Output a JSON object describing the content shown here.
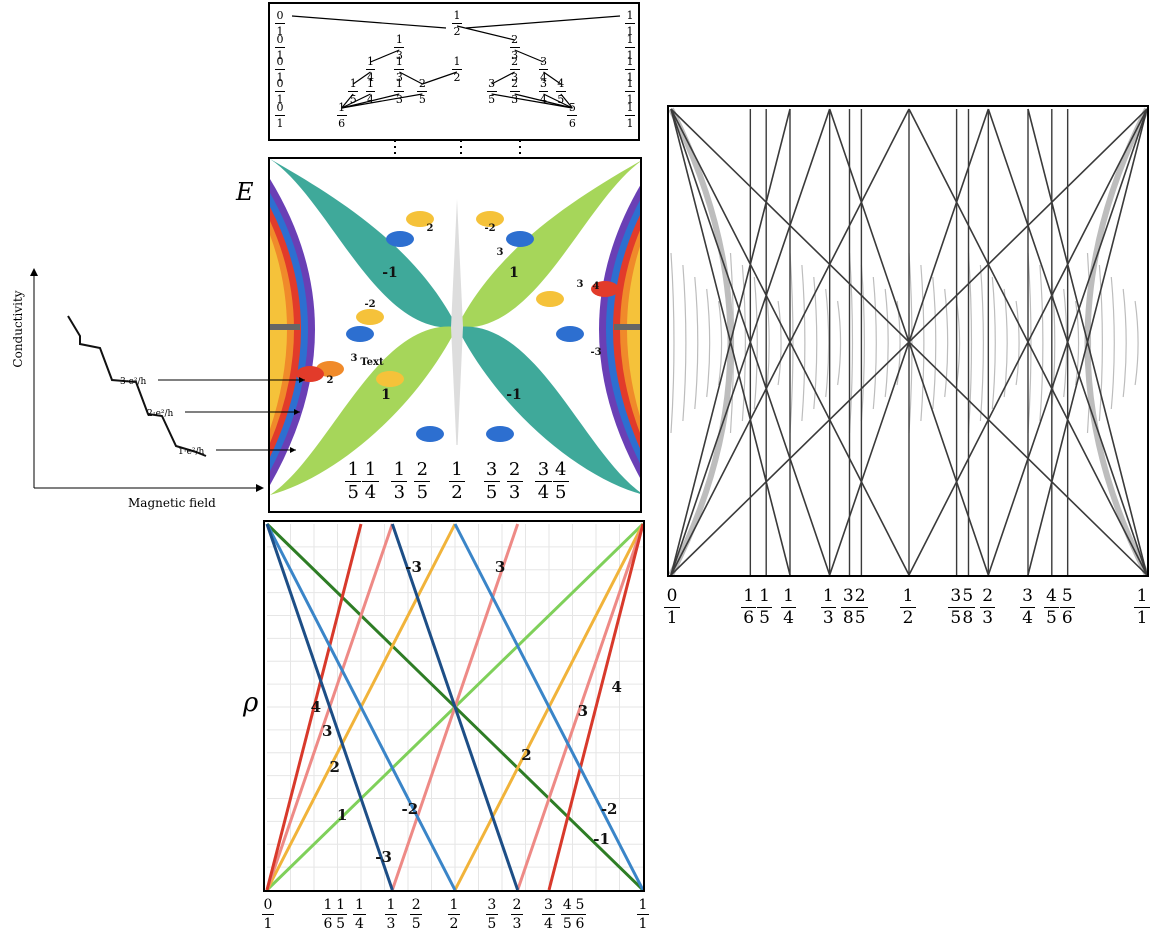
{
  "tree": {
    "rows": [
      [
        "0/1",
        "1/2",
        "1/1"
      ],
      [
        "0/1",
        "1/3",
        "2/3",
        "1/1"
      ],
      [
        "0/1",
        "1/4",
        "1/3",
        "1/2",
        "2/3",
        "3/4",
        "1/1"
      ],
      [
        "0/1",
        "1/5",
        "1/4",
        "1/3",
        "2/5",
        "3/5",
        "2/3",
        "3/4",
        "4/5",
        "1/1"
      ],
      [
        "0/1",
        "1/6",
        "5/6",
        "1/1"
      ]
    ]
  },
  "butterfly": {
    "axis_label": "E",
    "bottom_ticks": [
      "1/5",
      "1/4",
      "1/3",
      "2/5",
      "1/2",
      "3/5",
      "2/3",
      "3/4",
      "4/5"
    ],
    "region_labels": [
      "-1",
      "1",
      "1",
      "-1",
      "2",
      "2",
      "3",
      "3",
      "4",
      "-2",
      "-2",
      "-3",
      "3",
      "Text"
    ],
    "colors": {
      "teal": "#3fa99a",
      "lime": "#a6d65a",
      "yellow": "#f5c23a",
      "orange": "#f08a2a",
      "red": "#e23b2a",
      "blue": "#2d6fd0",
      "purple": "#6a3fb5"
    }
  },
  "conductivity": {
    "ylabel": "Conductivity",
    "xlabel": "Magnetic field",
    "levels": [
      "3·e²/h",
      "2·e²/h",
      "1·e²/h"
    ]
  },
  "rho_plot": {
    "axis_label": "ρ",
    "bottom_ticks": [
      "0/1",
      "1/6",
      "1/5",
      "1/4",
      "1/3",
      "2/5",
      "1/2",
      "3/5",
      "2/3",
      "3/4",
      "4/5",
      "5/6",
      "1/1"
    ],
    "line_labels": [
      "-3",
      "3",
      "4",
      "3",
      "2",
      "1",
      "-2",
      "-3",
      "2",
      "3",
      "4",
      "-2",
      "-1"
    ],
    "colors": {
      "red": "#d8392b",
      "salmon": "#ee8a86",
      "orange": "#f1b33a",
      "green": "#7fd05a",
      "darkgreen": "#2e7d25",
      "blue": "#3a85c8",
      "navy": "#1d4e86"
    }
  },
  "gray_plot": {
    "bottom_ticks": [
      "0/1",
      "1/6",
      "1/5",
      "1/4",
      "1/3",
      "3/8",
      "2/5",
      "1/2",
      "3/5",
      "5/8",
      "2/3",
      "3/4",
      "4/5",
      "5/6",
      "1/1"
    ],
    "colors": {
      "spectrum": "#bdbdbd",
      "lines": "#3a3a3a",
      "dark": "#111111"
    }
  }
}
